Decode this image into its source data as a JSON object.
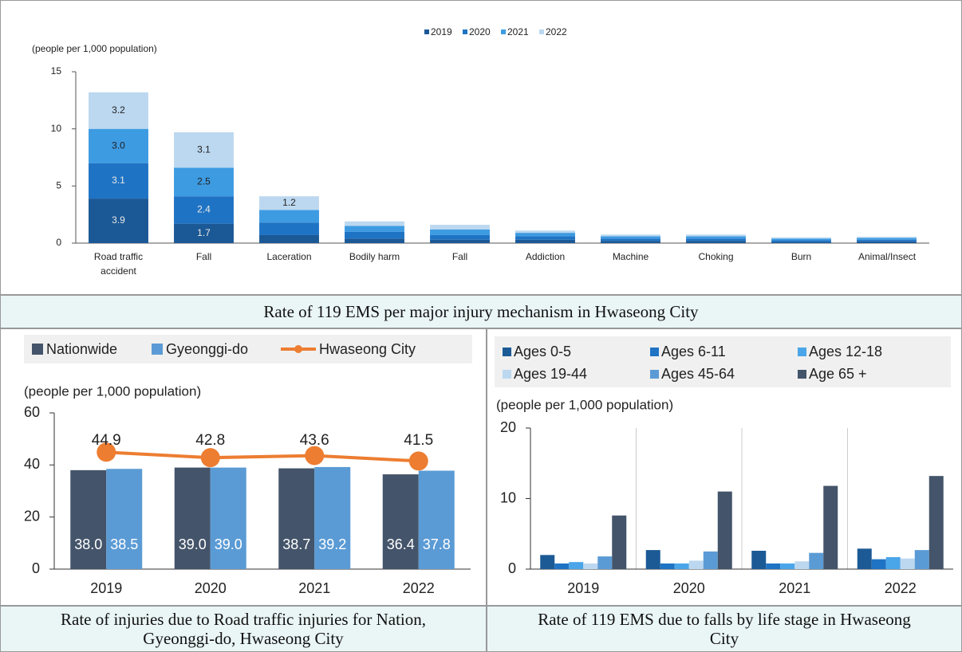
{
  "chart_data": [
    {
      "type": "stacked-bar",
      "y_label": "(people per 1,000 population)",
      "caption": "Rate of 119 EMS per major injury mechanism in Hwaseong City",
      "categories": [
        "Road traffic accident",
        "Fall",
        "Laceration",
        "Bodily harm",
        "Fall",
        "Addiction",
        "Machine",
        "Choking",
        "Burn",
        "Animal/Insect"
      ],
      "series": [
        {
          "name": "2019",
          "color": "#1b5896",
          "values": [
            3.9,
            1.7,
            0.7,
            0.4,
            0.3,
            0.3,
            0.2,
            0.2,
            0.1,
            0.15
          ],
          "value_labels": [
            "3.9",
            "1.7",
            null,
            null,
            null,
            null,
            null,
            null,
            null,
            null
          ]
        },
        {
          "name": "2020",
          "color": "#1f73c4",
          "values": [
            3.1,
            2.4,
            1.1,
            0.6,
            0.4,
            0.3,
            0.2,
            0.2,
            0.15,
            0.15
          ],
          "value_labels": [
            "3.1",
            "2.4",
            null,
            null,
            null,
            null,
            null,
            null,
            null,
            null
          ]
        },
        {
          "name": "2021",
          "color": "#3d9be2",
          "values": [
            3.0,
            2.5,
            1.1,
            0.5,
            0.5,
            0.3,
            0.2,
            0.2,
            0.15,
            0.15
          ],
          "value_labels": [
            "3.0",
            "2.5",
            null,
            null,
            null,
            null,
            null,
            null,
            null,
            null
          ]
        },
        {
          "name": "2022",
          "color": "#bcd8f0",
          "values": [
            3.2,
            3.1,
            1.2,
            0.4,
            0.4,
            0.2,
            0.15,
            0.15,
            0.1,
            0.1
          ],
          "value_labels": [
            "3.2",
            "3.1",
            "1.2",
            null,
            null,
            null,
            null,
            null,
            null,
            null
          ]
        }
      ],
      "ylim": [
        0,
        15
      ],
      "yticks": [
        0,
        5,
        10,
        15
      ]
    },
    {
      "type": "bar-line",
      "y_label": "(people per 1,000 population)",
      "caption": "Rate of injuries due to Road traffic injuries for Nation, Gyeonggi-do, Hwaseong City",
      "categories": [
        "2019",
        "2020",
        "2021",
        "2022"
      ],
      "series": [
        {
          "name": "Nationwide",
          "kind": "bar",
          "color": "#44546a",
          "values": [
            38.0,
            39.0,
            38.7,
            36.4
          ],
          "value_labels": [
            "38.0",
            "39.0",
            "38.7",
            "36.4"
          ]
        },
        {
          "name": "Gyeonggi-do",
          "kind": "bar",
          "color": "#5b9bd5",
          "values": [
            38.5,
            39.0,
            39.2,
            37.8
          ],
          "value_labels": [
            "38.5",
            "39.0",
            "39.2",
            "37.8"
          ]
        },
        {
          "name": "Hwaseong City",
          "kind": "line",
          "color": "#ed7d31",
          "values": [
            44.9,
            42.8,
            43.6,
            41.5
          ]
        }
      ],
      "ylim": [
        0,
        60
      ],
      "yticks": [
        0,
        20,
        40,
        60
      ]
    },
    {
      "type": "bar",
      "y_label": "(people per 1,000 population)",
      "caption": "Rate of 119 EMS due to falls by life stage in Hwaseong City",
      "categories": [
        "2019",
        "2020",
        "2021",
        "2022"
      ],
      "series": [
        {
          "name": "Ages 0-5",
          "color": "#1c5a96",
          "values": [
            2.0,
            2.7,
            2.6,
            2.9
          ]
        },
        {
          "name": "Ages 6-11",
          "color": "#1f73c4",
          "values": [
            0.8,
            0.8,
            0.8,
            1.4
          ]
        },
        {
          "name": "Ages 12-18",
          "color": "#4aa6e8",
          "values": [
            1.0,
            0.8,
            0.8,
            1.7
          ]
        },
        {
          "name": "Ages 19-44",
          "color": "#bcd8f0",
          "values": [
            0.8,
            1.2,
            1.1,
            1.5
          ]
        },
        {
          "name": "Ages 45-64",
          "color": "#5b9bd5",
          "values": [
            1.8,
            2.5,
            2.3,
            2.7
          ]
        },
        {
          "name": "Age 65 +",
          "color": "#44546a",
          "values": [
            7.6,
            11.0,
            11.8,
            13.2
          ]
        }
      ],
      "ylim": [
        0,
        20
      ],
      "yticks": [
        0,
        10,
        20
      ]
    }
  ]
}
